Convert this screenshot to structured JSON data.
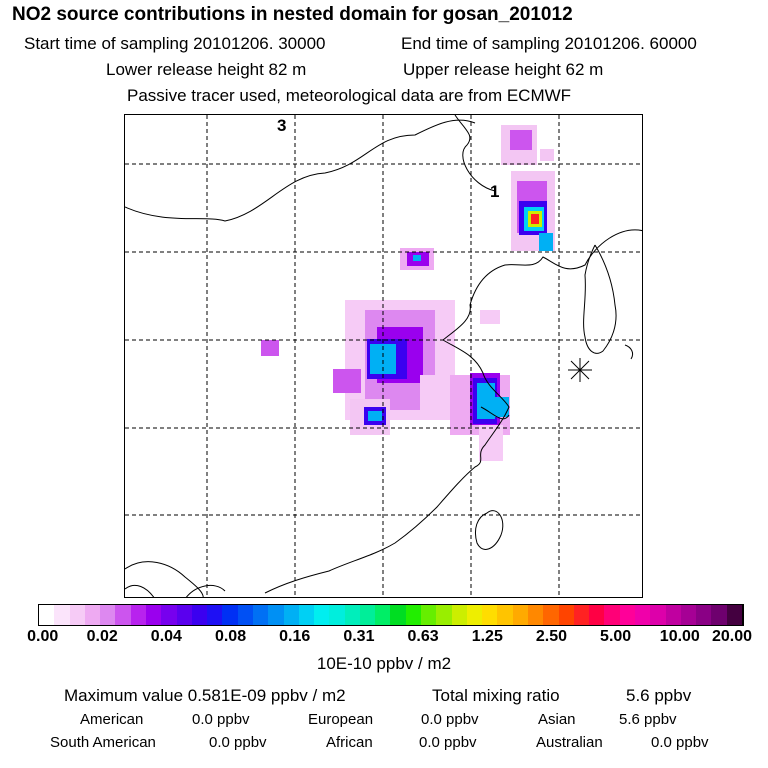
{
  "header": {
    "title": "NO2 source contributions in nested domain for gosan_201012",
    "start_label": "Start time of sampling 20101206. 30000",
    "end_label": "End time of sampling 20101206. 60000",
    "lower_label": "Lower release height   82 m",
    "upper_label": "Upper release height   62 m",
    "tracer_note": "Passive tracer used, meteorological data are from ECMWF"
  },
  "map": {
    "labels": [
      "3",
      "1"
    ],
    "receptor_marker": "asterisk-marker"
  },
  "colorbar": {
    "colors": [
      "#ffffff",
      "#fbe4fb",
      "#f6cbf6",
      "#eeaaf2",
      "#dd88f0",
      "#cc55ee",
      "#b822ee",
      "#9a00ee",
      "#7700ee",
      "#5a00ee",
      "#3b00f0",
      "#1e10f4",
      "#0030f4",
      "#0050f4",
      "#0070f4",
      "#0090f4",
      "#00b0f4",
      "#00d0f4",
      "#00eef0",
      "#00eedd",
      "#00eebb",
      "#00ee99",
      "#00ee66",
      "#00dd22",
      "#22ee00",
      "#66ee00",
      "#99ee00",
      "#ccee00",
      "#eeee00",
      "#ffdd00",
      "#ffc400",
      "#ffaa00",
      "#ff8800",
      "#ff6600",
      "#ff4400",
      "#ff2222",
      "#ff0044",
      "#ff0077",
      "#ff0099",
      "#f000aa",
      "#dd00aa",
      "#c000a0",
      "#a60095",
      "#8a0085",
      "#6e006e",
      "#440040"
    ],
    "tick_labels": [
      "0.00",
      "0.02",
      "0.04",
      "0.08",
      "0.16",
      "0.31",
      "0.63",
      "1.25",
      "2.50",
      "5.00",
      "10.00",
      "20.00"
    ],
    "unit": "10E-10 ppbv / m2"
  },
  "stats": {
    "maximum": "Maximum value  0.581E-09 ppbv / m2",
    "total_label": "Total mixing ratio",
    "total_value": "5.6 ppbv",
    "regions": [
      {
        "name": "American",
        "value": "0.0 ppbv"
      },
      {
        "name": "European",
        "value": "0.0 ppbv"
      },
      {
        "name": "Asian",
        "value": "5.6 ppbv"
      },
      {
        "name": "South American",
        "value": "0.0 ppbv"
      },
      {
        "name": "African",
        "value": "0.0 ppbv"
      },
      {
        "name": "Australian",
        "value": "0.0 ppbv"
      }
    ]
  }
}
